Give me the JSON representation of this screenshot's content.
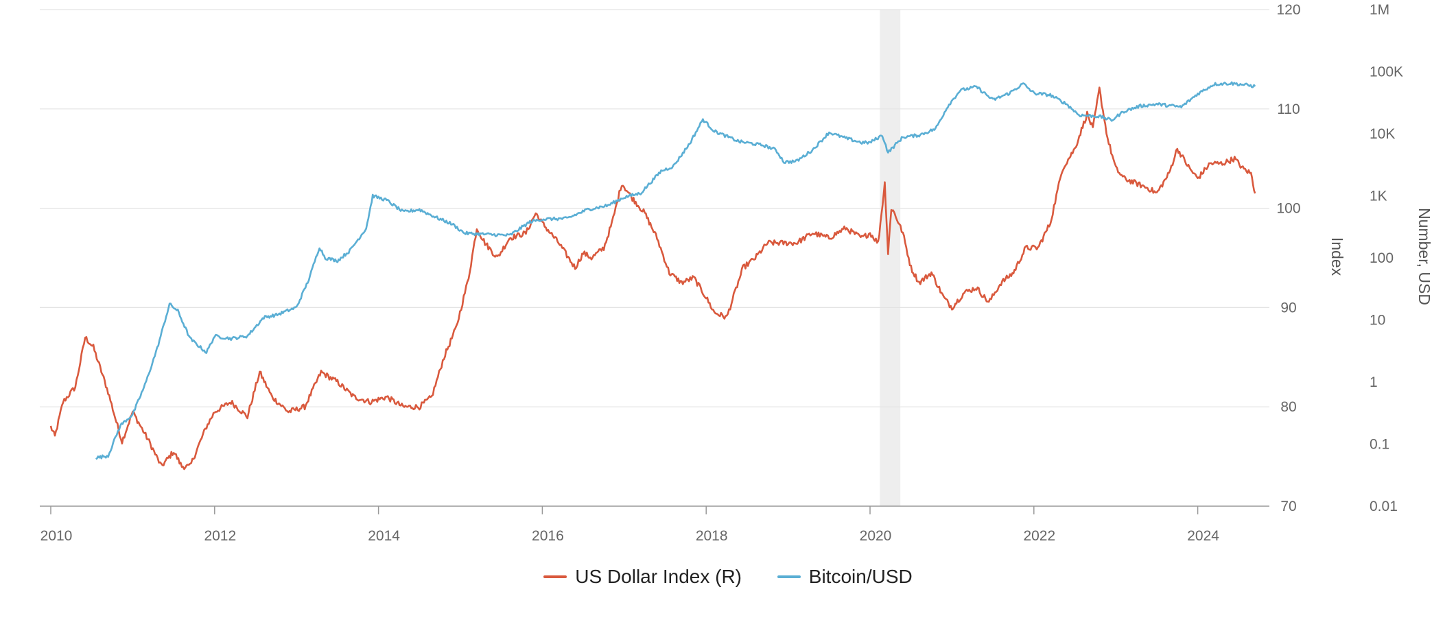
{
  "chart_data": {
    "type": "line",
    "title": "",
    "colors": {
      "dxy": "#d9593d",
      "btc": "#5aaed4",
      "recession": "#eeeeee",
      "grid": "#e3e3e3",
      "axis": "#999999"
    },
    "x_ticks": [
      "2010",
      "2012",
      "2014",
      "2016",
      "2018",
      "2020",
      "2022",
      "2024"
    ],
    "xlim": [
      2010,
      2024.9
    ],
    "y_right_inner": {
      "label": "Index",
      "ticks": [
        "70",
        "80",
        "90",
        "100",
        "110",
        "120"
      ],
      "ylim": [
        70,
        120
      ]
    },
    "y_right_outer": {
      "label": "Number, USD",
      "scale": "log",
      "ticks": [
        "0.01",
        "0.1",
        "1",
        "10",
        "100",
        "1K",
        "10K",
        "100K",
        "1M"
      ],
      "ylim": [
        0.01,
        1000000
      ]
    },
    "shaded_period": {
      "start": 2020.12,
      "end": 2020.37
    },
    "legend": {
      "placement": "bottom",
      "items": [
        "US Dollar Index (R)",
        "Bitcoin/USD"
      ]
    },
    "series": [
      {
        "name": "US Dollar Index (R)",
        "axis": "y_right_inner",
        "x": [
          2010.0,
          2010.05,
          2010.15,
          2010.3,
          2010.42,
          2010.52,
          2010.7,
          2010.8,
          2010.87,
          2011.0,
          2011.1,
          2011.2,
          2011.35,
          2011.5,
          2011.6,
          2011.7,
          2011.9,
          2012.0,
          2012.2,
          2012.4,
          2012.55,
          2012.7,
          2012.9,
          2013.1,
          2013.3,
          2013.5,
          2013.7,
          2013.9,
          2014.1,
          2014.3,
          2014.5,
          2014.65,
          2014.8,
          2014.95,
          2015.1,
          2015.2,
          2015.3,
          2015.45,
          2015.6,
          2015.8,
          2015.92,
          2016.0,
          2016.2,
          2016.4,
          2016.5,
          2016.6,
          2016.75,
          2016.85,
          2016.97,
          2017.1,
          2017.25,
          2017.4,
          2017.55,
          2017.7,
          2017.85,
          2018.0,
          2018.1,
          2018.25,
          2018.45,
          2018.6,
          2018.75,
          2018.9,
          2019.1,
          2019.3,
          2019.5,
          2019.7,
          2019.9,
          2020.0,
          2020.1,
          2020.18,
          2020.22,
          2020.26,
          2020.3,
          2020.4,
          2020.5,
          2020.6,
          2020.75,
          2020.9,
          2021.0,
          2021.15,
          2021.3,
          2021.45,
          2021.6,
          2021.75,
          2021.9,
          2022.05,
          2022.2,
          2022.35,
          2022.5,
          2022.65,
          2022.72,
          2022.8,
          2022.9,
          2023.0,
          2023.1,
          2023.25,
          2023.4,
          2023.5,
          2023.65,
          2023.75,
          2023.9,
          2024.0,
          2024.15,
          2024.3,
          2024.45,
          2024.55,
          2024.65,
          2024.7
        ],
        "values": [
          78.0,
          77.0,
          80.5,
          82.0,
          87.0,
          86.0,
          81.5,
          78.5,
          76.5,
          79.5,
          78.0,
          76.5,
          74.0,
          75.5,
          74.0,
          74.0,
          78.0,
          79.5,
          80.5,
          79.0,
          83.5,
          81.0,
          79.5,
          80.0,
          83.5,
          82.5,
          81.0,
          80.5,
          81.0,
          80.0,
          80.0,
          81.0,
          85.0,
          88.0,
          93.0,
          98.0,
          96.5,
          95.0,
          97.0,
          97.5,
          99.5,
          98.5,
          96.5,
          94.0,
          95.5,
          95.0,
          96.0,
          98.5,
          102.5,
          101.0,
          99.5,
          97.0,
          93.5,
          92.5,
          93.0,
          91.0,
          89.5,
          89.0,
          94.0,
          95.0,
          96.5,
          96.5,
          96.5,
          97.5,
          97.0,
          98.0,
          97.0,
          97.5,
          96.5,
          102.5,
          95.5,
          100.0,
          99.5,
          97.5,
          94.0,
          92.5,
          93.5,
          91.0,
          90.0,
          91.5,
          92.0,
          90.5,
          92.5,
          93.5,
          96.0,
          96.0,
          98.5,
          104.0,
          106.0,
          109.5,
          108.0,
          112.0,
          107.0,
          104.0,
          103.0,
          102.5,
          102.0,
          101.5,
          103.5,
          106.0,
          104.0,
          103.0,
          104.5,
          104.5,
          105.0,
          104.0,
          103.5,
          101.5
        ]
      },
      {
        "name": "Bitcoin/USD",
        "axis": "y_right_outer",
        "x": [
          2010.55,
          2010.7,
          2010.85,
          2011.0,
          2011.15,
          2011.3,
          2011.45,
          2011.55,
          2011.7,
          2011.9,
          2012.0,
          2012.2,
          2012.4,
          2012.6,
          2012.75,
          2013.0,
          2013.15,
          2013.28,
          2013.35,
          2013.5,
          2013.65,
          2013.85,
          2013.93,
          2014.1,
          2014.3,
          2014.5,
          2014.7,
          2014.9,
          2015.05,
          2015.3,
          2015.6,
          2015.85,
          2016.0,
          2016.3,
          2016.55,
          2016.8,
          2017.0,
          2017.2,
          2017.45,
          2017.6,
          2017.8,
          2017.96,
          2018.1,
          2018.4,
          2018.7,
          2018.85,
          2018.95,
          2019.1,
          2019.3,
          2019.5,
          2019.7,
          2019.9,
          2020.0,
          2020.15,
          2020.22,
          2020.4,
          2020.6,
          2020.8,
          2020.95,
          2021.1,
          2021.3,
          2021.5,
          2021.7,
          2021.87,
          2022.0,
          2022.2,
          2022.4,
          2022.55,
          2022.8,
          2022.95,
          2023.1,
          2023.3,
          2023.5,
          2023.8,
          2024.0,
          2024.2,
          2024.4,
          2024.55,
          2024.7
        ],
        "values": [
          0.06,
          0.065,
          0.2,
          0.3,
          0.9,
          3.5,
          18.0,
          14.0,
          5.0,
          3.0,
          5.5,
          5.0,
          5.5,
          11.0,
          12.0,
          16.0,
          45.0,
          150.0,
          100.0,
          90.0,
          130.0,
          300.0,
          1000.0,
          850.0,
          550.0,
          600.0,
          450.0,
          350.0,
          250.0,
          240.0,
          230.0,
          380.0,
          420.0,
          430.0,
          600.0,
          700.0,
          950.0,
          1100.0,
          2500.0,
          3000.0,
          7000.0,
          17000.0,
          11000.0,
          7500.0,
          6500.0,
          5500.0,
          3500.0,
          3600.0,
          5500.0,
          10500.0,
          8500.0,
          7200.0,
          7200.0,
          9500.0,
          5000.0,
          8800.0,
          9500.0,
          12000.0,
          28000.0,
          50000.0,
          57000.0,
          35000.0,
          45000.0,
          64000.0,
          45000.0,
          42000.0,
          30000.0,
          20000.0,
          19000.0,
          16500.0,
          23000.0,
          28000.0,
          30000.0,
          27000.0,
          44000.0,
          63000.0,
          65000.0,
          62000.0,
          58000.0
        ]
      }
    ]
  }
}
